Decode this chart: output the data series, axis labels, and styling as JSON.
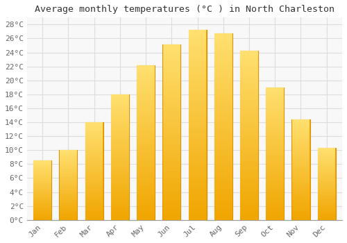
{
  "title": "Average monthly temperatures (°C ) in North Charleston",
  "months": [
    "Jan",
    "Feb",
    "Mar",
    "Apr",
    "May",
    "Jun",
    "Jul",
    "Aug",
    "Sep",
    "Oct",
    "Nov",
    "Dec"
  ],
  "values": [
    8.5,
    10.0,
    14.0,
    18.0,
    22.2,
    25.1,
    27.2,
    26.7,
    24.3,
    19.0,
    14.4,
    10.3
  ],
  "bar_color_bottom": "#F0A500",
  "bar_color_top": "#FFE070",
  "bar_edge_color": "#E09000",
  "ylim": [
    0,
    29
  ],
  "yticks": [
    0,
    2,
    4,
    6,
    8,
    10,
    12,
    14,
    16,
    18,
    20,
    22,
    24,
    26,
    28
  ],
  "ytick_labels": [
    "0°C",
    "2°C",
    "4°C",
    "6°C",
    "8°C",
    "10°C",
    "12°C",
    "14°C",
    "16°C",
    "18°C",
    "20°C",
    "22°C",
    "24°C",
    "26°C",
    "28°C"
  ],
  "background_color": "#FFFFFF",
  "plot_bg_color": "#F8F8F8",
  "grid_color": "#DDDDDD",
  "title_fontsize": 9.5,
  "tick_fontsize": 8,
  "bar_width": 0.7
}
